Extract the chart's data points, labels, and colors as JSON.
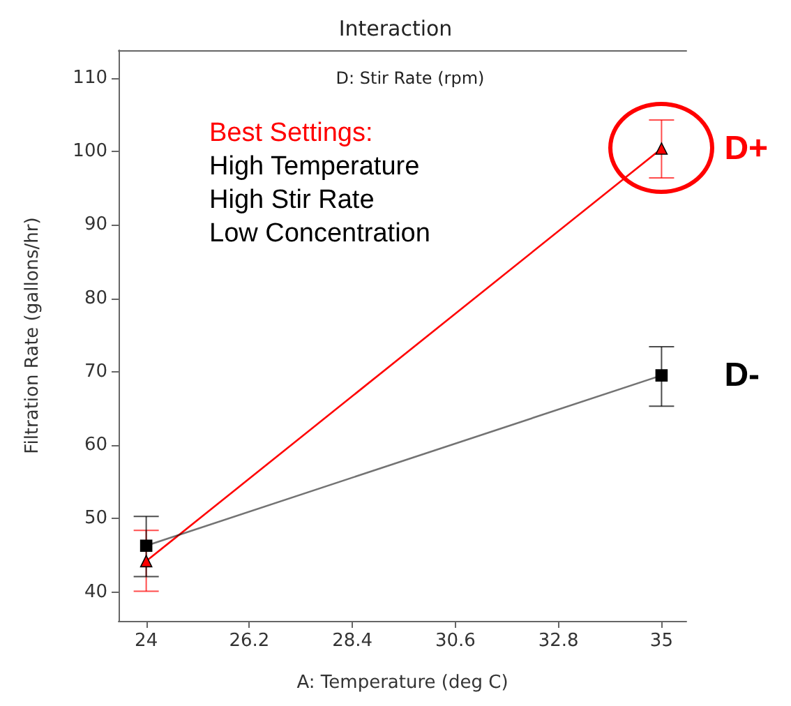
{
  "chart_data": {
    "type": "line",
    "title": "Interaction",
    "legend_title": "D: Stir Rate (rpm)",
    "xlabel": "A: Temperature (deg C)",
    "ylabel": "Filtration Rate (gallons/hr)",
    "x": [
      24,
      35
    ],
    "series": [
      {
        "name": "D+",
        "color": "#ff0000",
        "marker": "triangle",
        "values": [
          44.2,
          100.4
        ],
        "errors": [
          [
            40.1,
            48.4
          ],
          [
            96.4,
            104.3
          ]
        ]
      },
      {
        "name": "D-",
        "color": "#000000",
        "marker": "square",
        "values": [
          46.3,
          69.5
        ],
        "errors": [
          [
            42.1,
            50.3
          ],
          [
            65.3,
            73.4
          ]
        ]
      }
    ],
    "xlim": [
      23.41,
      35.53
    ],
    "xticks": [
      24,
      26.2,
      28.4,
      30.6,
      32.8,
      35
    ],
    "ylim": [
      36.06,
      113.8
    ],
    "yticks": [
      40,
      50,
      60,
      70,
      80,
      90,
      100,
      110
    ],
    "grid": false,
    "legend": false,
    "annotations": [
      "Best Settings:",
      "High Temperature",
      "High Stir Rate",
      "Low Concentration"
    ]
  }
}
